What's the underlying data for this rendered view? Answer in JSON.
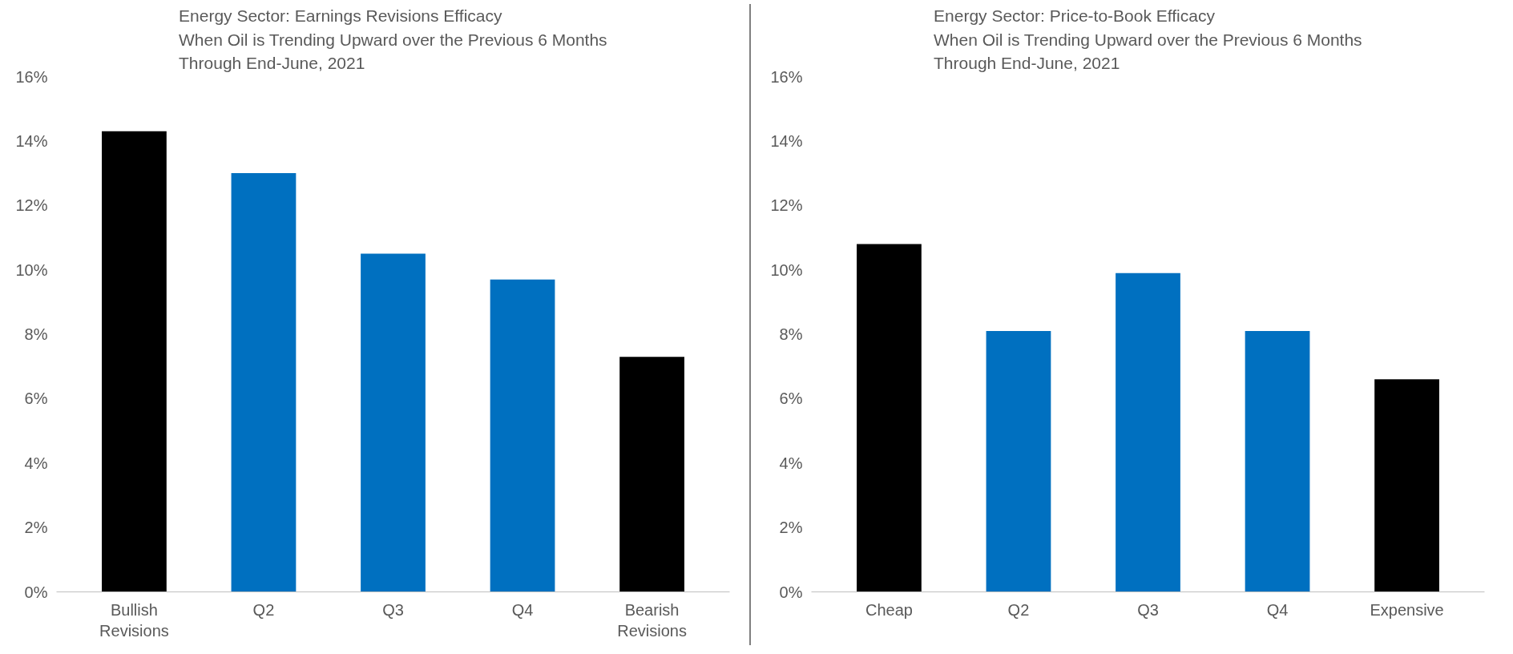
{
  "chart_data": [
    {
      "type": "bar",
      "title": "Energy Sector: Earnings Revisions Efficacy\nWhen Oil is Trending Upward over the Previous 6 Months\nThrough End-June, 2021",
      "categories": [
        "Bullish Revisions",
        "Q2",
        "Q3",
        "Q4",
        "Bearish Revisions"
      ],
      "values": [
        0.143,
        0.13,
        0.105,
        0.097,
        0.073
      ],
      "colors": [
        "#000000",
        "#0070c0",
        "#0070c0",
        "#0070c0",
        "#000000"
      ],
      "ylim": [
        0,
        0.16
      ],
      "yticks": [
        {
          "value": 0,
          "label": "0%"
        },
        {
          "value": 0.02,
          "label": "2%"
        },
        {
          "value": 0.04,
          "label": "4%"
        },
        {
          "value": 0.06,
          "label": "6%"
        },
        {
          "value": 0.08,
          "label": "8%"
        },
        {
          "value": 0.1,
          "label": "10%"
        },
        {
          "value": 0.12,
          "label": "12%"
        },
        {
          "value": 0.14,
          "label": "14%"
        },
        {
          "value": 0.16,
          "label": "16%"
        }
      ],
      "grid": false
    },
    {
      "type": "bar",
      "title": "Energy Sector: Price-to-Book Efficacy\nWhen Oil is Trending Upward over the Previous 6 Months\nThrough End-June, 2021",
      "categories": [
        "Cheap",
        "Q2",
        "Q3",
        "Q4",
        "Expensive"
      ],
      "values": [
        0.108,
        0.081,
        0.099,
        0.081,
        0.066
      ],
      "colors": [
        "#000000",
        "#0070c0",
        "#0070c0",
        "#0070c0",
        "#000000"
      ],
      "ylim": [
        0,
        0.16
      ],
      "yticks": [
        {
          "value": 0,
          "label": "0%"
        },
        {
          "value": 0.02,
          "label": "2%"
        },
        {
          "value": 0.04,
          "label": "4%"
        },
        {
          "value": 0.06,
          "label": "6%"
        },
        {
          "value": 0.08,
          "label": "8%"
        },
        {
          "value": 0.1,
          "label": "10%"
        },
        {
          "value": 0.12,
          "label": "12%"
        },
        {
          "value": 0.14,
          "label": "14%"
        },
        {
          "value": 0.16,
          "label": "16%"
        }
      ],
      "grid": false
    }
  ]
}
